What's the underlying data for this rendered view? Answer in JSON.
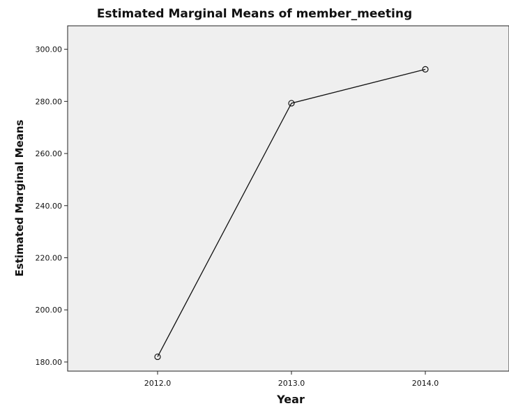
{
  "chart_data": {
    "type": "line",
    "title": "Estimated Marginal Means of member_meeting",
    "xlabel": "Year",
    "ylabel": "Estimated Marginal Means",
    "categories": [
      "2012.0",
      "2013.0",
      "2014.0"
    ],
    "series": [
      {
        "values": [
          182.0,
          279.3,
          292.3
        ]
      }
    ],
    "ylim": [
      176.5,
      309.0
    ],
    "yticks": [
      180,
      200,
      220,
      240,
      260,
      280,
      300
    ],
    "ytick_labels": [
      "180.00",
      "200.00",
      "220.00",
      "240.00",
      "260.00",
      "280.00",
      "300.00"
    ],
    "grid": false,
    "legend": "none",
    "colors": {
      "plot_background": "#efefef",
      "line": "#111111",
      "page": "#ffffff"
    }
  }
}
